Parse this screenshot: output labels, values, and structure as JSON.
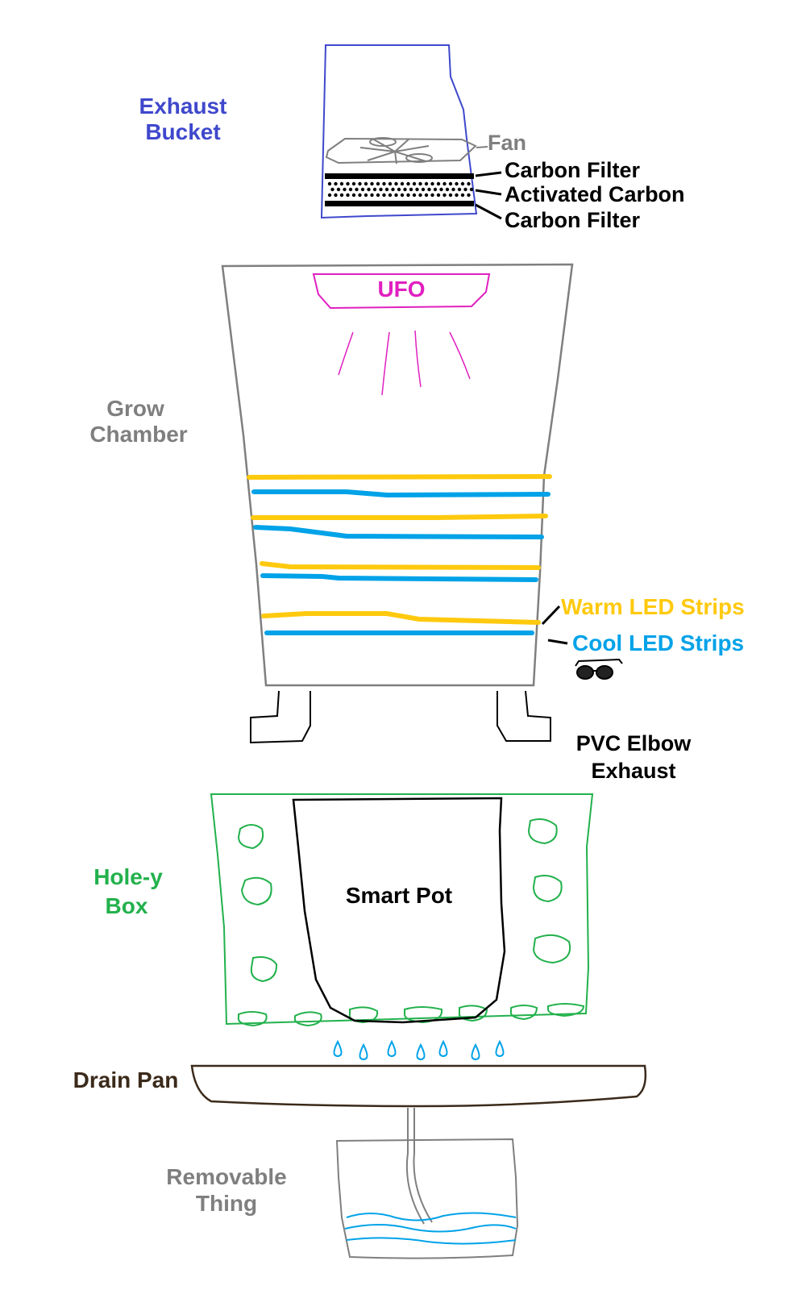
{
  "colors": {
    "exhaust": "#3f48cc",
    "gray": "#7f7f7f",
    "ufo": "#e020c0",
    "warm": "#ffc90e",
    "cool": "#00a2e8",
    "green": "#22b14c",
    "black": "#000000",
    "drain": "#3b2a1a"
  },
  "icons": {
    "glasses": "sunglasses-icon"
  },
  "labels": {
    "exhaust_bucket": [
      "Exhaust",
      "Bucket"
    ],
    "fan": "Fan",
    "carbon_filter_top": "Carbon Filter",
    "activated_carbon": "Activated Carbon",
    "carbon_filter_bottom": "Carbon Filter",
    "ufo": "UFO",
    "grow_chamber": [
      "Grow",
      "Chamber"
    ],
    "warm_led": "Warm LED Strips",
    "cool_led": "Cool LED Strips",
    "pvc_elbow": [
      "PVC Elbow",
      "Exhaust"
    ],
    "holey_box": [
      "Hole-y",
      "Box"
    ],
    "smart_pot": "Smart Pot",
    "drain_pan": "Drain Pan",
    "removable": [
      "Removable",
      "Thing"
    ]
  }
}
